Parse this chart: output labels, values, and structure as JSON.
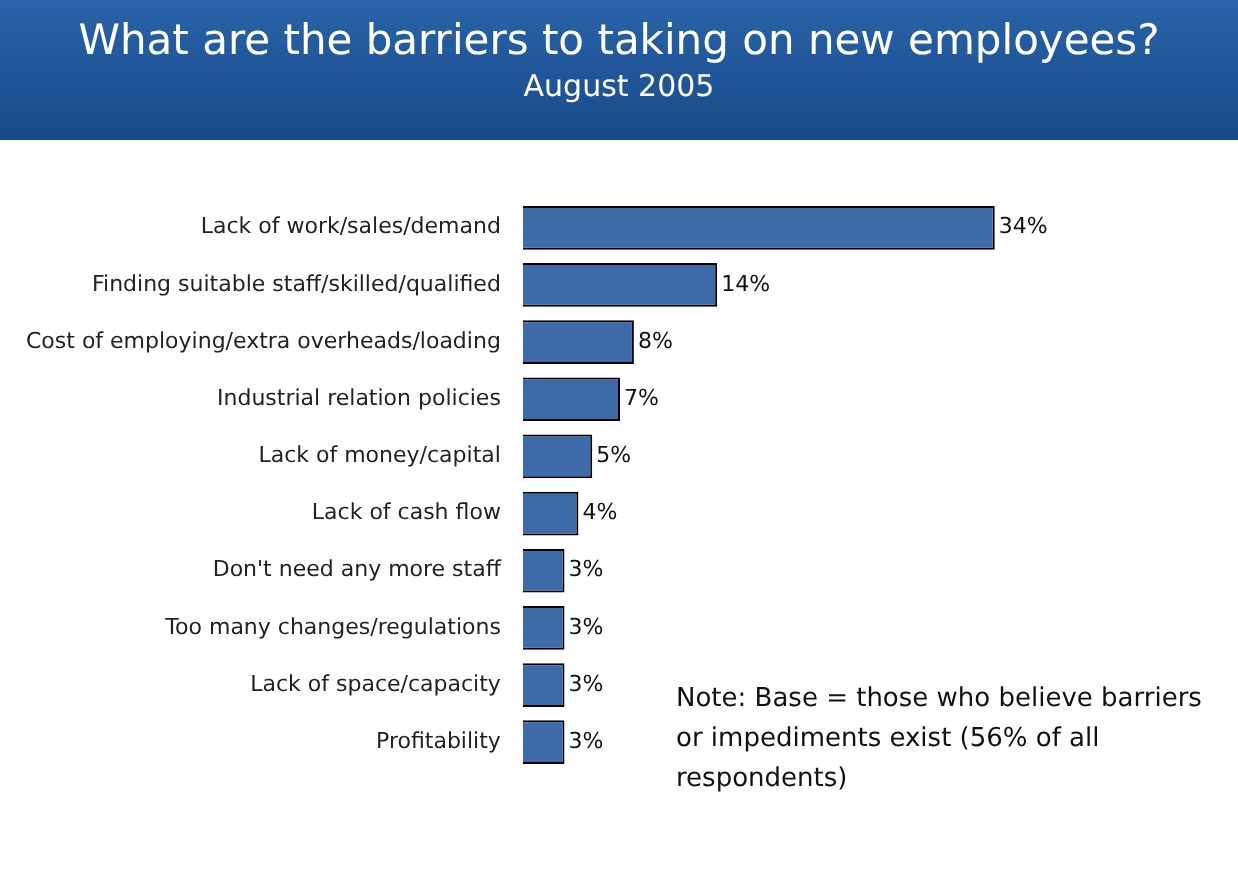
{
  "chart_data": {
    "type": "bar",
    "orientation": "horizontal",
    "title": "What are the barriers to taking on new employees?",
    "subtitle": "August 2005",
    "categories": [
      "Lack of work/sales/demand",
      "Finding suitable staff/skilled/qualified",
      "Cost of employing/extra overheads/loading",
      "Industrial relation policies",
      "Lack of money/capital",
      "Lack of cash flow",
      "Don't need any more staff",
      "Too many changes/regulations",
      "Lack of space/capacity",
      "Profitability"
    ],
    "values": [
      34,
      14,
      8,
      7,
      5,
      4,
      3,
      3,
      3,
      3
    ],
    "value_labels": [
      "34%",
      "14%",
      "8%",
      "7%",
      "5%",
      "4%",
      "3%",
      "3%",
      "3%",
      "3%"
    ],
    "color": "#3d6aa8",
    "annotations": [
      "Note: Base = those who believe barriers or impediments exist (56% of all respondents)"
    ]
  }
}
